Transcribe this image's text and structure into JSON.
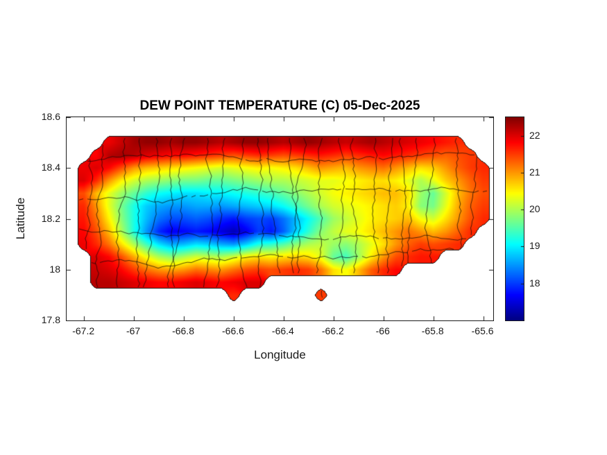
{
  "figure": {
    "title": "DEW POINT TEMPERATURE (C) 05-Dec-2025",
    "xlabel": "Longitude",
    "ylabel": "Latitude"
  },
  "axes": {
    "x_tick_labels": [
      "-67.2",
      "-67",
      "-66.8",
      "-66.6",
      "-66.4",
      "-66.2",
      "-66",
      "-65.8",
      "-65.6"
    ],
    "x_tick_values": [
      -67.2,
      -67,
      -66.8,
      -66.6,
      -66.4,
      -66.2,
      -66,
      -65.8,
      -65.6
    ],
    "y_tick_labels": [
      "18.6",
      "18.4",
      "18.2",
      "18",
      "17.8"
    ],
    "y_tick_values": [
      18.6,
      18.4,
      18.2,
      18,
      17.8
    ],
    "x_range": [
      -67.27,
      -65.56
    ],
    "y_range": [
      17.8,
      18.6
    ]
  },
  "colorbar": {
    "tick_labels": [
      "22",
      "21",
      "20",
      "19",
      "18"
    ],
    "tick_values": [
      22,
      21,
      20,
      19,
      18
    ],
    "range": [
      17,
      22.5
    ],
    "colormap": "jet"
  },
  "overlays": [
    "island coastline outline",
    "municipal boundary outlines"
  ],
  "chart_data": {
    "type": "heatmap",
    "title": "DEW POINT TEMPERATURE (C) 05-Dec-2025",
    "xlabel": "Longitude",
    "ylabel": "Latitude",
    "units": "C",
    "region": "Puerto Rico",
    "colormap": "jet",
    "value_range": [
      17,
      22.5
    ],
    "grid": {
      "lat_start": 18.55,
      "lat_step": -0.05,
      "lon_start": -67.3,
      "lon_step": 0.05,
      "values": [
        [
          null,
          null,
          null,
          null,
          null,
          null,
          null,
          null,
          null,
          null,
          null,
          null,
          null,
          null,
          null,
          null,
          null,
          null,
          null,
          null,
          null,
          null,
          null,
          null,
          null,
          null,
          null,
          null,
          null,
          null,
          null,
          null,
          null,
          null,
          null,
          null
        ],
        [
          null,
          null,
          null,
          null,
          21.9,
          22.1,
          22.3,
          22.4,
          22.4,
          22.3,
          22.4,
          22.4,
          22.3,
          22.2,
          22.3,
          22.4,
          22.4,
          22.3,
          22.2,
          22.3,
          22.4,
          22.3,
          22.2,
          22.1,
          22.2,
          22.3,
          22.2,
          22.1,
          22,
          21.9,
          21.8,
          21.7,
          21.6,
          null,
          null,
          null
        ],
        [
          null,
          null,
          null,
          21.8,
          22.2,
          22.3,
          22.2,
          22,
          21.9,
          21.8,
          21.8,
          21.7,
          21.6,
          21.5,
          21.4,
          21.5,
          21.6,
          21.5,
          21.4,
          21.5,
          21.6,
          21.7,
          21.6,
          21.5,
          21.6,
          21.7,
          21.8,
          21.7,
          21.6,
          21.5,
          21.4,
          21.3,
          21.4,
          21.5,
          null,
          null
        ],
        [
          null,
          null,
          21.9,
          22,
          21.8,
          21.4,
          21,
          20.8,
          20.7,
          20.6,
          20.5,
          20.4,
          20.3,
          20.2,
          20.3,
          20.4,
          20.5,
          20.4,
          20.5,
          20.6,
          20.8,
          21,
          20.9,
          20.8,
          21,
          21.1,
          21.2,
          21,
          20.8,
          20.6,
          20.7,
          21,
          21.3,
          21.5,
          21.6,
          null
        ],
        [
          null,
          null,
          22,
          21.6,
          21,
          20.5,
          20.2,
          20,
          19.9,
          19.8,
          19.7,
          19.7,
          19.6,
          19.6,
          19.7,
          19.8,
          19.9,
          20,
          20,
          20.1,
          20.2,
          20.3,
          20.3,
          20.4,
          20.5,
          20.6,
          20.6,
          20.5,
          20.3,
          20,
          20.3,
          20.7,
          21,
          21.3,
          21.5,
          null
        ],
        [
          null,
          null,
          21.4,
          20.8,
          20.3,
          19.9,
          19.6,
          19.3,
          19.1,
          19,
          18.9,
          18.9,
          19,
          19,
          19.1,
          19.2,
          19.3,
          19.4,
          19.6,
          19.8,
          20,
          20.2,
          20.4,
          20.5,
          20.6,
          20.7,
          20.8,
          20.8,
          20.6,
          19.9,
          19.6,
          20.2,
          20.8,
          21.2,
          21.4,
          null
        ],
        [
          null,
          null,
          21.6,
          21,
          20.3,
          19.7,
          19.2,
          18.8,
          18.6,
          18.5,
          18.5,
          18.6,
          18.6,
          18.5,
          18.6,
          18.7,
          18.8,
          18.9,
          19.1,
          19.4,
          19.7,
          20,
          20.2,
          20.3,
          20.4,
          20.5,
          20.6,
          20.7,
          20.5,
          19.8,
          19.7,
          20.3,
          20.9,
          21.3,
          21.5,
          null
        ],
        [
          null,
          null,
          21.7,
          21.2,
          20.5,
          19.8,
          19.2,
          18.7,
          18.3,
          18.1,
          18.1,
          18.2,
          18.1,
          17.9,
          17.8,
          18,
          18.1,
          18,
          18.3,
          18.7,
          19.1,
          19.5,
          19.9,
          20.1,
          20.3,
          20.5,
          20.6,
          20.7,
          20.8,
          20.4,
          20.2,
          20.6,
          21,
          21.4,
          21.6,
          null
        ],
        [
          null,
          null,
          21.8,
          21.4,
          20.8,
          20,
          19.2,
          18.5,
          17.9,
          17.6,
          17.7,
          17.8,
          17.7,
          17.5,
          17.3,
          17.6,
          18,
          17.8,
          18.2,
          18.8,
          19.3,
          19.8,
          20.1,
          20.3,
          20.4,
          20.6,
          20.8,
          21,
          21.2,
          21,
          20.8,
          21,
          21.3,
          21.6,
          null,
          null
        ],
        [
          null,
          null,
          21.9,
          21.6,
          21.2,
          20.6,
          20,
          19.4,
          18.9,
          18.6,
          18.7,
          18.9,
          18.8,
          18.6,
          18.5,
          18.8,
          19.2,
          19.3,
          19.5,
          19.8,
          20,
          20.1,
          19.9,
          19.8,
          20,
          20.3,
          20.6,
          21,
          21.3,
          21.5,
          21.4,
          21.5,
          21.6,
          null,
          null,
          null
        ],
        [
          null,
          null,
          null,
          22,
          21.8,
          21.4,
          20.9,
          20.4,
          20,
          19.8,
          20,
          20.2,
          20.1,
          20,
          20.2,
          20.5,
          20.6,
          20.5,
          20.6,
          20.7,
          20.6,
          20.3,
          19.6,
          19.4,
          19.9,
          20.5,
          21,
          21.4,
          21.6,
          21.7,
          21.7,
          null,
          null,
          null,
          null,
          null
        ],
        [
          null,
          null,
          null,
          22.1,
          22,
          21.8,
          21.5,
          21.2,
          21,
          20.9,
          21,
          21.2,
          21.1,
          21,
          21.2,
          21.4,
          21.5,
          21.4,
          21.5,
          21.6,
          21.5,
          21.2,
          20.6,
          20.4,
          20.8,
          21.3,
          21.6,
          21.8,
          null,
          null,
          null,
          null,
          null,
          null,
          null,
          null
        ],
        [
          null,
          null,
          null,
          22.2,
          22.2,
          22.1,
          22,
          21.9,
          21.8,
          21.8,
          21.9,
          22,
          21.9,
          21.8,
          21.9,
          22,
          22,
          null,
          null,
          null,
          null,
          null,
          null,
          null,
          null,
          null,
          null,
          null,
          null,
          null,
          null,
          null,
          null,
          null,
          null,
          null
        ],
        [
          null,
          null,
          null,
          null,
          null,
          null,
          null,
          null,
          null,
          null,
          null,
          null,
          null,
          null,
          21.6,
          null,
          null,
          null,
          null,
          null,
          null,
          21.5,
          null,
          null,
          null,
          null,
          null,
          null,
          null,
          null,
          null,
          null,
          null,
          null,
          null,
          null
        ]
      ]
    }
  }
}
